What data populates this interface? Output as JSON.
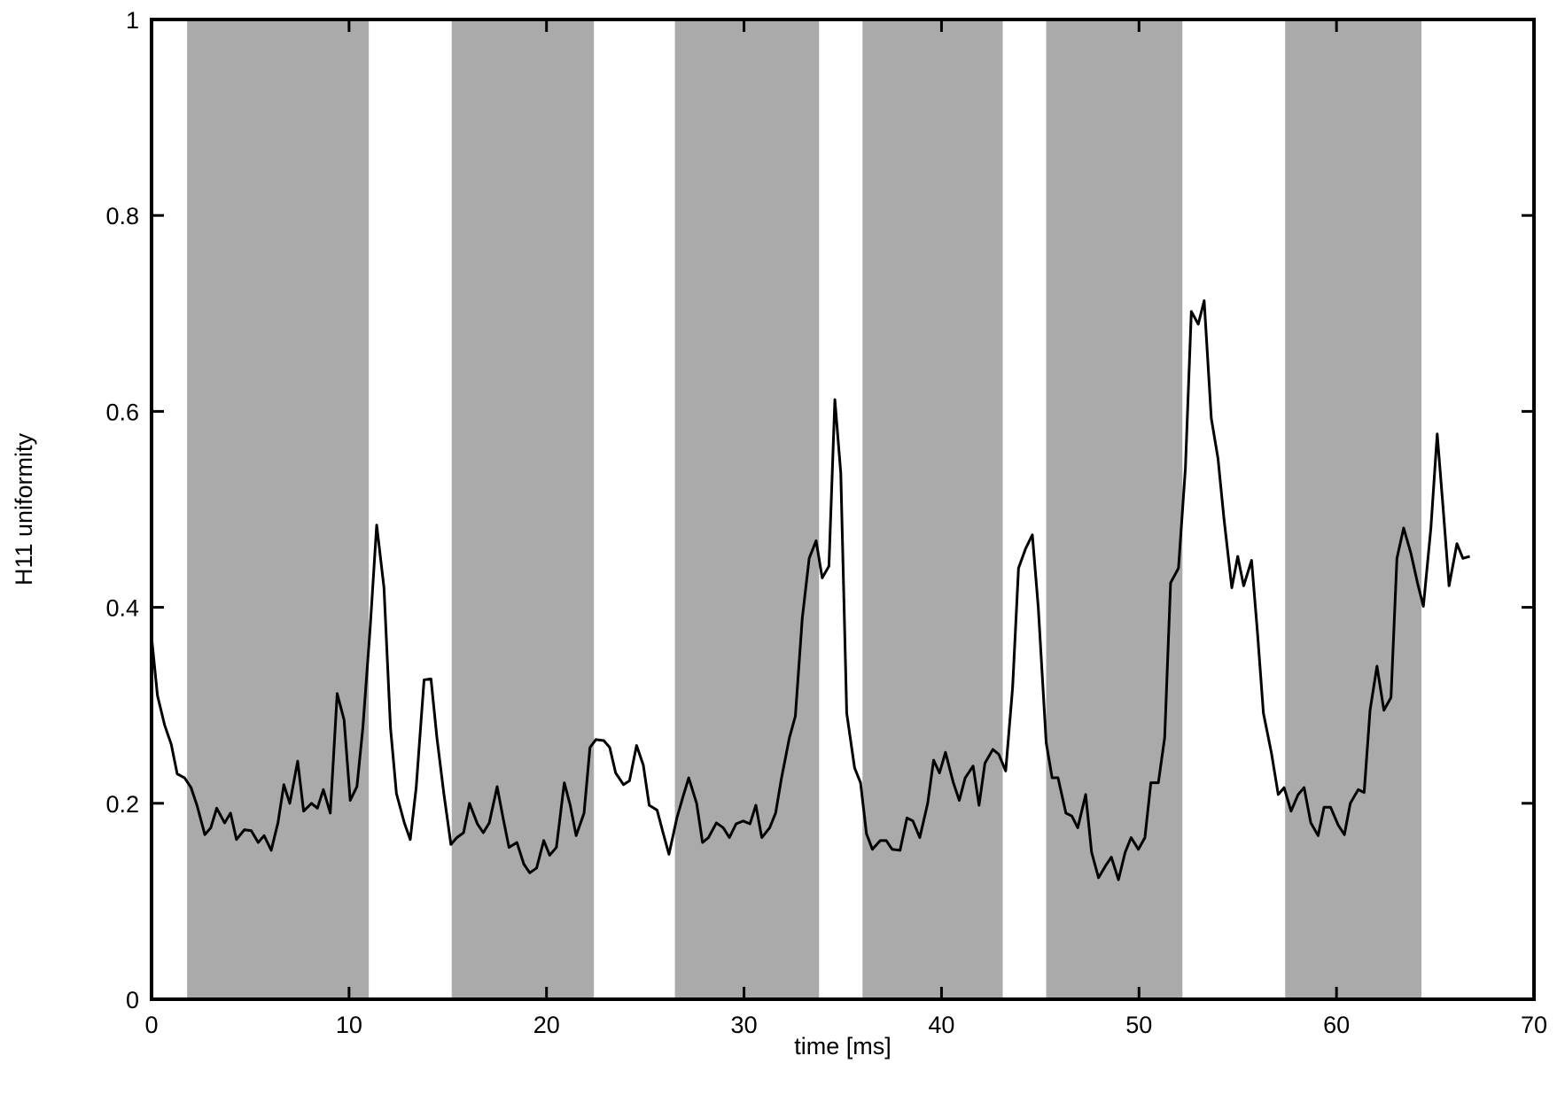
{
  "chart_data": {
    "type": "line",
    "xlabel": "time [ms]",
    "ylabel": "H11 uniformity",
    "xlim": [
      0,
      70
    ],
    "xticks": [
      0,
      10,
      20,
      30,
      40,
      50,
      60,
      70
    ],
    "ylim": [
      0,
      1
    ],
    "yticks": [
      0,
      0.2,
      0.4,
      0.6,
      0.8,
      1
    ],
    "shaded_regions": [
      [
        1.8,
        11.0
      ],
      [
        15.2,
        22.4
      ],
      [
        26.5,
        33.8
      ],
      [
        36.0,
        43.1
      ],
      [
        45.3,
        52.2
      ],
      [
        57.4,
        64.3
      ]
    ],
    "shade_color": "#aaaaaa",
    "series": [
      {
        "color": "#000000",
        "x": [
          0,
          0.3,
          0.66,
          1.0,
          1.3,
          1.67,
          2.0,
          2.3,
          2.7,
          3.0,
          3.3,
          3.7,
          4.0,
          4.3,
          4.7,
          5.05,
          5.4,
          5.7,
          6.06,
          6.4,
          6.7,
          7.0,
          7.4,
          7.7,
          8.1,
          8.4,
          8.7,
          9.05,
          9.4,
          9.75,
          10.06,
          10.4,
          10.7,
          11.07,
          11.4,
          11.77,
          12.1,
          12.4,
          12.8,
          13.1,
          13.4,
          13.8,
          14.15,
          14.45,
          14.8,
          15.16,
          15.46,
          15.8,
          16.1,
          16.5,
          16.8,
          17.1,
          17.5,
          17.8,
          18.1,
          18.5,
          18.85,
          19.15,
          19.5,
          19.86,
          20.16,
          20.5,
          20.9,
          21.2,
          21.5,
          21.9,
          22.2,
          22.5,
          22.9,
          23.2,
          23.5,
          23.9,
          24.2,
          24.56,
          24.9,
          25.2,
          25.6,
          25.9,
          26.2,
          26.6,
          26.9,
          27.2,
          27.6,
          27.9,
          28.2,
          28.6,
          28.95,
          29.26,
          29.6,
          29.96,
          30.3,
          30.6,
          30.9,
          31.3,
          31.6,
          31.9,
          32.3,
          32.6,
          32.95,
          33.3,
          33.65,
          33.96,
          34.3,
          34.6,
          34.9,
          35.2,
          35.6,
          35.9,
          36.2,
          36.5,
          36.9,
          37.2,
          37.5,
          37.9,
          38.25,
          38.55,
          38.9,
          39.3,
          39.6,
          39.9,
          40.2,
          40.6,
          40.9,
          41.2,
          41.6,
          41.9,
          42.2,
          42.6,
          42.9,
          43.25,
          43.6,
          43.9,
          44.26,
          44.6,
          44.9,
          45.3,
          45.6,
          45.9,
          46.3,
          46.6,
          46.9,
          47.3,
          47.6,
          47.95,
          48.3,
          48.6,
          48.96,
          49.3,
          49.6,
          49.97,
          50.3,
          50.6,
          50.98,
          51.3,
          51.6,
          52.0,
          52.35,
          52.65,
          53.0,
          53.3,
          53.66,
          54.0,
          54.3,
          54.7,
          55.0,
          55.3,
          55.7,
          56.0,
          56.3,
          56.7,
          57.05,
          57.35,
          57.7,
          58.06,
          58.36,
          58.7,
          59.07,
          59.37,
          59.7,
          60.08,
          60.4,
          60.7,
          61.1,
          61.4,
          61.7,
          62.05,
          62.4,
          62.76,
          63.06,
          63.4,
          63.77,
          64.1,
          64.4,
          64.78,
          65.1,
          65.4,
          65.7,
          66.1,
          66.4,
          66.75
        ],
        "values": [
          0.37,
          0.31,
          0.28,
          0.26,
          0.23,
          0.226,
          0.216,
          0.198,
          0.168,
          0.175,
          0.195,
          0.18,
          0.19,
          0.163,
          0.173,
          0.172,
          0.16,
          0.167,
          0.152,
          0.18,
          0.219,
          0.2,
          0.243,
          0.192,
          0.2,
          0.195,
          0.214,
          0.19,
          0.312,
          0.285,
          0.203,
          0.217,
          0.277,
          0.379,
          0.484,
          0.42,
          0.277,
          0.21,
          0.18,
          0.163,
          0.216,
          0.326,
          0.327,
          0.267,
          0.21,
          0.158,
          0.165,
          0.17,
          0.2,
          0.179,
          0.17,
          0.18,
          0.217,
          0.185,
          0.155,
          0.16,
          0.138,
          0.129,
          0.134,
          0.162,
          0.147,
          0.155,
          0.221,
          0.198,
          0.167,
          0.19,
          0.257,
          0.265,
          0.264,
          0.257,
          0.231,
          0.219,
          0.223,
          0.259,
          0.239,
          0.198,
          0.193,
          0.17,
          0.148,
          0.185,
          0.206,
          0.226,
          0.2,
          0.16,
          0.165,
          0.18,
          0.175,
          0.165,
          0.179,
          0.182,
          0.179,
          0.198,
          0.165,
          0.175,
          0.19,
          0.226,
          0.267,
          0.289,
          0.389,
          0.45,
          0.468,
          0.43,
          0.442,
          0.612,
          0.537,
          0.292,
          0.236,
          0.221,
          0.169,
          0.153,
          0.162,
          0.162,
          0.153,
          0.152,
          0.185,
          0.182,
          0.165,
          0.2,
          0.244,
          0.231,
          0.252,
          0.221,
          0.203,
          0.226,
          0.238,
          0.198,
          0.241,
          0.255,
          0.25,
          0.233,
          0.318,
          0.44,
          0.46,
          0.474,
          0.4,
          0.262,
          0.226,
          0.226,
          0.19,
          0.187,
          0.175,
          0.209,
          0.15,
          0.124,
          0.136,
          0.145,
          0.122,
          0.15,
          0.165,
          0.153,
          0.165,
          0.221,
          0.221,
          0.267,
          0.425,
          0.44,
          0.542,
          0.702,
          0.689,
          0.713,
          0.593,
          0.552,
          0.491,
          0.42,
          0.452,
          0.422,
          0.448,
          0.374,
          0.292,
          0.252,
          0.209,
          0.216,
          0.192,
          0.209,
          0.216,
          0.18,
          0.167,
          0.196,
          0.196,
          0.178,
          0.168,
          0.2,
          0.214,
          0.211,
          0.295,
          0.34,
          0.295,
          0.308,
          0.45,
          0.481,
          0.455,
          0.425,
          0.401,
          0.481,
          0.577,
          0.501,
          0.422,
          0.465,
          0.45,
          0.452
        ]
      }
    ]
  }
}
